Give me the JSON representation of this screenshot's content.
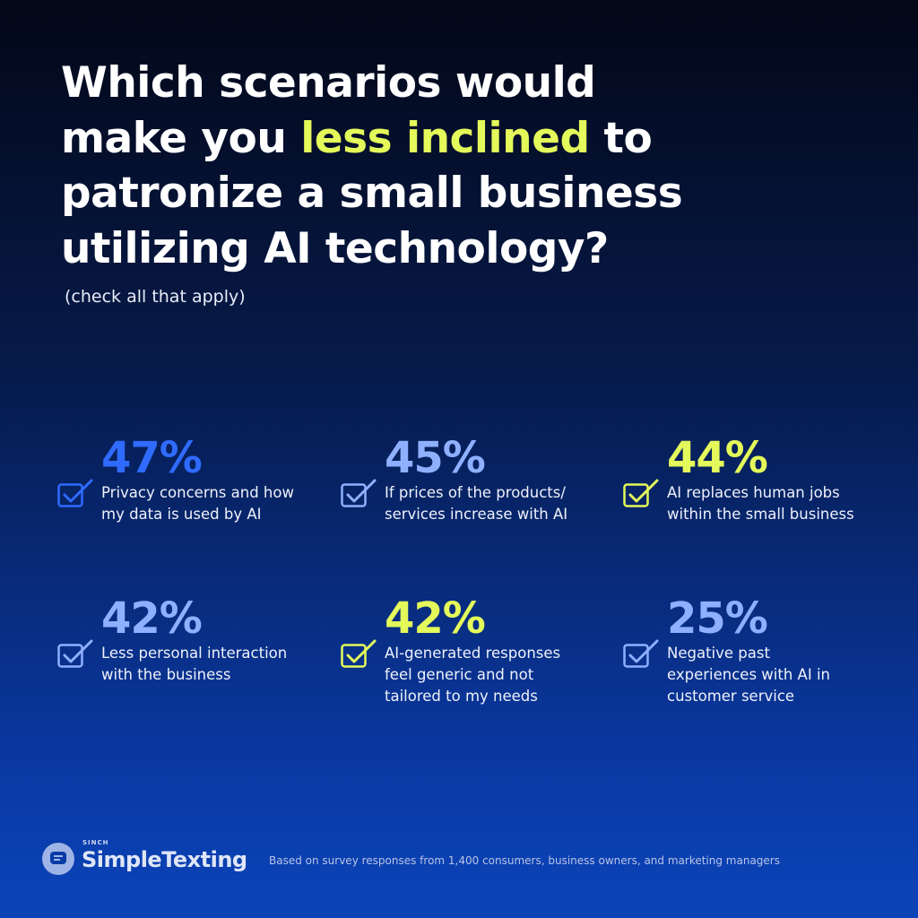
{
  "header": {
    "title_lines": [
      [
        {
          "text": "Which scenarios would"
        }
      ],
      [
        {
          "text": "make you "
        },
        {
          "text": "less inclined",
          "highlight": true
        },
        {
          "text": " to"
        }
      ],
      [
        {
          "text": "patronize a small business"
        }
      ],
      [
        {
          "text": "utilizing AI technology?"
        }
      ]
    ],
    "subtitle": "(check all that apply)"
  },
  "items": [
    {
      "percent": "47%",
      "color": "#2f6bff",
      "lines": [
        "Privacy concerns and how",
        "my data is used by AI"
      ]
    },
    {
      "percent": "45%",
      "color": "#8fb0ff",
      "lines": [
        "If prices of the products/",
        "services increase with AI"
      ]
    },
    {
      "percent": "44%",
      "color": "#e4f95a",
      "lines": [
        "AI replaces human jobs",
        "within the small business"
      ]
    },
    {
      "percent": "42%",
      "color": "#8fb0ff",
      "lines": [
        "Less personal interaction",
        "with the business"
      ]
    },
    {
      "percent": "42%",
      "color": "#e4f95a",
      "lines": [
        "AI-generated responses",
        "feel generic and not",
        "tailored to my needs"
      ]
    },
    {
      "percent": "25%",
      "color": "#8fb0ff",
      "lines": [
        "Negative past",
        "experiences with AI in",
        "customer service"
      ]
    }
  ],
  "footer": {
    "brand_small": "SINCH",
    "brand": "SimpleTexting",
    "note": "Based on survey responses from 1,400 consumers, business owners, and marketing managers"
  }
}
